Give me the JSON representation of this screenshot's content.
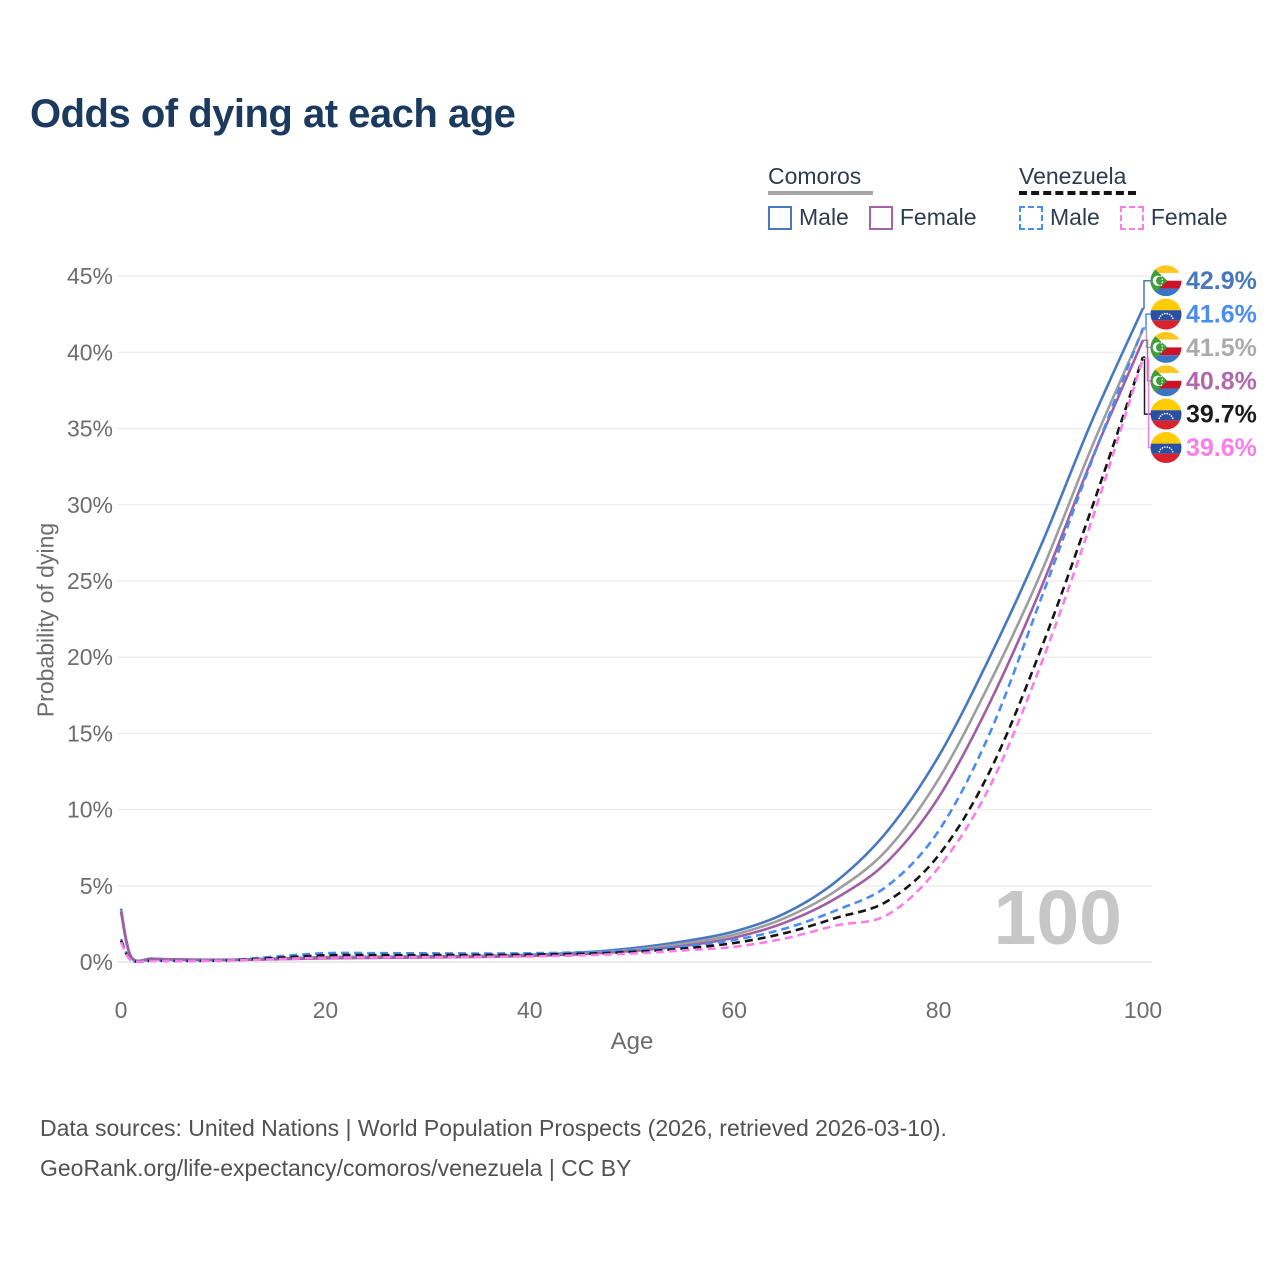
{
  "title": "Odds of dying at each age",
  "legend": {
    "groups": [
      {
        "name": "Comoros",
        "line": "solid",
        "underline_color": "#a6a6a6",
        "items": [
          {
            "label": "Male",
            "color": "#4878bd"
          },
          {
            "label": "Female",
            "color": "#a462ab"
          }
        ]
      },
      {
        "name": "Venezuela",
        "line": "dashed",
        "underline_color": "#141414",
        "items": [
          {
            "label": "Male",
            "color": "#4a8df2"
          },
          {
            "label": "Female",
            "color": "#fa7de9"
          }
        ]
      }
    ]
  },
  "chart_data": {
    "type": "line",
    "title": "Odds of dying at each age",
    "xlabel": "Age",
    "ylabel": "Probability of dying",
    "xlim": [
      0,
      100
    ],
    "ylim": [
      0,
      45
    ],
    "xticks": [
      0,
      20,
      40,
      60,
      80,
      100
    ],
    "yticks": [
      0,
      5,
      10,
      15,
      20,
      25,
      30,
      35,
      40,
      45
    ],
    "ytick_suffix": "%",
    "grid": "horizontal",
    "hovered_age": "100",
    "series": [
      {
        "id": "comoros-male",
        "name": "Comoros Male",
        "country": "Comoros",
        "sex": "Male",
        "line": "solid",
        "color": "#4878bd",
        "points": [
          [
            0,
            3.5
          ],
          [
            1,
            0.35
          ],
          [
            3,
            0.22
          ],
          [
            5,
            0.18
          ],
          [
            10,
            0.15
          ],
          [
            15,
            0.22
          ],
          [
            20,
            0.32
          ],
          [
            25,
            0.35
          ],
          [
            30,
            0.37
          ],
          [
            35,
            0.4
          ],
          [
            40,
            0.47
          ],
          [
            45,
            0.62
          ],
          [
            50,
            0.9
          ],
          [
            55,
            1.35
          ],
          [
            60,
            2.0
          ],
          [
            65,
            3.2
          ],
          [
            70,
            5.3
          ],
          [
            75,
            8.6
          ],
          [
            80,
            13.5
          ],
          [
            85,
            20.0
          ],
          [
            90,
            27.3
          ],
          [
            95,
            35.5
          ],
          [
            100,
            42.9
          ]
        ]
      },
      {
        "id": "comoros-all",
        "name": "Comoros (both sexes)",
        "country": "Comoros",
        "sex": "Both",
        "line": "solid",
        "color": "#9e9e9e",
        "points": [
          [
            0,
            3.4
          ],
          [
            1,
            0.33
          ],
          [
            3,
            0.2
          ],
          [
            5,
            0.17
          ],
          [
            10,
            0.14
          ],
          [
            15,
            0.2
          ],
          [
            20,
            0.28
          ],
          [
            25,
            0.31
          ],
          [
            30,
            0.33
          ],
          [
            35,
            0.37
          ],
          [
            40,
            0.43
          ],
          [
            45,
            0.56
          ],
          [
            50,
            0.8
          ],
          [
            55,
            1.2
          ],
          [
            60,
            1.8
          ],
          [
            65,
            2.9
          ],
          [
            70,
            4.7
          ],
          [
            75,
            7.4
          ],
          [
            80,
            12.0
          ],
          [
            85,
            18.3
          ],
          [
            90,
            25.5
          ],
          [
            95,
            33.8
          ],
          [
            100,
            41.5
          ]
        ]
      },
      {
        "id": "comoros-female",
        "name": "Comoros Female",
        "country": "Comoros",
        "sex": "Female",
        "line": "solid",
        "color": "#a05ea5",
        "points": [
          [
            0,
            3.3
          ],
          [
            1,
            0.3
          ],
          [
            3,
            0.19
          ],
          [
            5,
            0.16
          ],
          [
            10,
            0.13
          ],
          [
            15,
            0.18
          ],
          [
            20,
            0.24
          ],
          [
            25,
            0.27
          ],
          [
            30,
            0.3
          ],
          [
            35,
            0.33
          ],
          [
            40,
            0.4
          ],
          [
            45,
            0.51
          ],
          [
            50,
            0.72
          ],
          [
            55,
            1.05
          ],
          [
            60,
            1.6
          ],
          [
            65,
            2.6
          ],
          [
            70,
            4.2
          ],
          [
            75,
            6.6
          ],
          [
            80,
            10.8
          ],
          [
            85,
            17.0
          ],
          [
            90,
            24.5
          ],
          [
            95,
            33.0
          ],
          [
            100,
            40.8
          ]
        ]
      },
      {
        "id": "venezuela-male",
        "name": "Venezuela Male",
        "country": "Venezuela",
        "sex": "Male",
        "line": "dashed",
        "color": "#4a8df2",
        "points": [
          [
            0,
            1.5
          ],
          [
            1,
            0.13
          ],
          [
            3,
            0.1
          ],
          [
            5,
            0.09
          ],
          [
            10,
            0.11
          ],
          [
            15,
            0.35
          ],
          [
            20,
            0.58
          ],
          [
            25,
            0.58
          ],
          [
            30,
            0.57
          ],
          [
            35,
            0.56
          ],
          [
            40,
            0.57
          ],
          [
            45,
            0.64
          ],
          [
            50,
            0.78
          ],
          [
            55,
            1.02
          ],
          [
            60,
            1.45
          ],
          [
            65,
            2.2
          ],
          [
            70,
            3.4
          ],
          [
            75,
            5.0
          ],
          [
            80,
            8.6
          ],
          [
            85,
            15.0
          ],
          [
            90,
            23.8
          ],
          [
            95,
            32.9
          ],
          [
            100,
            41.6
          ]
        ]
      },
      {
        "id": "venezuela-all",
        "name": "Venezuela (both sexes)",
        "country": "Venezuela",
        "sex": "Both",
        "line": "dashed",
        "color": "#161616",
        "points": [
          [
            0,
            1.4
          ],
          [
            1,
            0.12
          ],
          [
            3,
            0.09
          ],
          [
            5,
            0.08
          ],
          [
            10,
            0.1
          ],
          [
            15,
            0.26
          ],
          [
            20,
            0.44
          ],
          [
            25,
            0.45
          ],
          [
            30,
            0.45
          ],
          [
            35,
            0.46
          ],
          [
            40,
            0.48
          ],
          [
            45,
            0.54
          ],
          [
            50,
            0.66
          ],
          [
            55,
            0.88
          ],
          [
            60,
            1.25
          ],
          [
            65,
            1.9
          ],
          [
            70,
            2.9
          ],
          [
            75,
            4.0
          ],
          [
            80,
            7.0
          ],
          [
            85,
            12.5
          ],
          [
            90,
            20.5
          ],
          [
            95,
            29.8
          ],
          [
            100,
            39.7
          ]
        ]
      },
      {
        "id": "venezuela-female",
        "name": "Venezuela Female",
        "country": "Venezuela",
        "sex": "Female",
        "line": "dashed",
        "color": "#fa7de9",
        "points": [
          [
            0,
            1.3
          ],
          [
            1,
            0.11
          ],
          [
            3,
            0.08
          ],
          [
            5,
            0.07
          ],
          [
            10,
            0.09
          ],
          [
            15,
            0.18
          ],
          [
            20,
            0.28
          ],
          [
            25,
            0.3
          ],
          [
            30,
            0.32
          ],
          [
            35,
            0.34
          ],
          [
            40,
            0.37
          ],
          [
            45,
            0.44
          ],
          [
            50,
            0.56
          ],
          [
            55,
            0.76
          ],
          [
            60,
            1.0
          ],
          [
            65,
            1.55
          ],
          [
            70,
            2.4
          ],
          [
            75,
            3.1
          ],
          [
            80,
            6.2
          ],
          [
            85,
            11.5
          ],
          [
            90,
            19.5
          ],
          [
            95,
            29.0
          ],
          [
            100,
            39.6
          ]
        ]
      }
    ],
    "end_labels": [
      {
        "series": "comoros-male",
        "text": "42.9%",
        "flag": "comoros",
        "color": "#4878bd"
      },
      {
        "series": "venezuela-male",
        "text": "41.6%",
        "flag": "venezuela",
        "color": "#4a8df2"
      },
      {
        "series": "comoros-all",
        "text": "41.5%",
        "flag": "comoros",
        "color": "#ababab"
      },
      {
        "series": "comoros-female",
        "text": "40.8%",
        "flag": "comoros",
        "color": "#b068ae"
      },
      {
        "series": "venezuela-all",
        "text": "39.7%",
        "flag": "venezuela",
        "color": "#1c1c1c"
      },
      {
        "series": "venezuela-female",
        "text": "39.6%",
        "flag": "venezuela",
        "color": "#fa7de9"
      }
    ]
  },
  "footer": {
    "line1": "Data sources: United Nations | World Population Prospects (2026, retrieved 2026-03-10).",
    "line2": "GeoRank.org/life-expectancy/comoros/venezuela | CC BY"
  }
}
